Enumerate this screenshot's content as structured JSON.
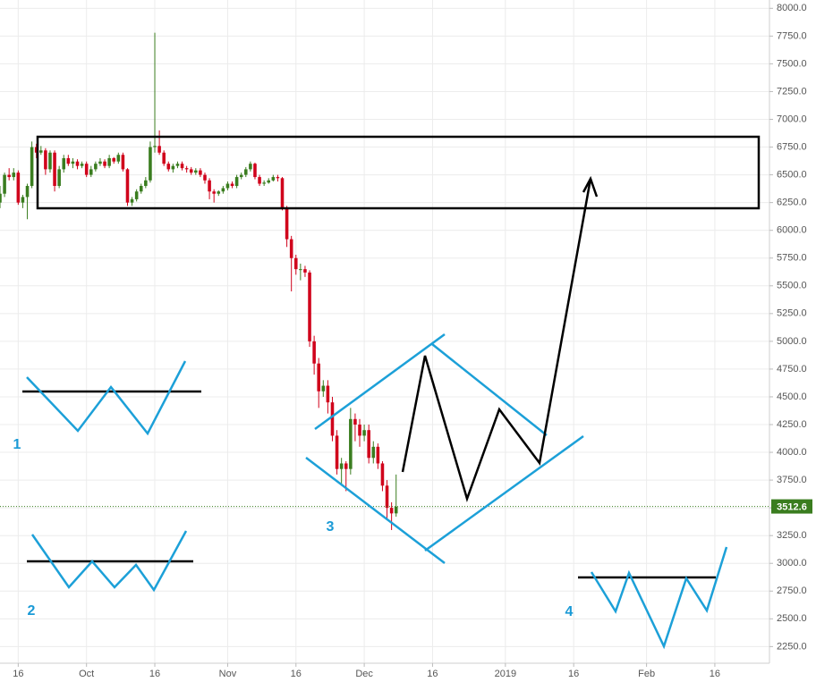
{
  "chart_data": {
    "type": "candlestick",
    "x": [
      0,
      1,
      2,
      3,
      4,
      5,
      6,
      7,
      8,
      9,
      10,
      11,
      12,
      13,
      14,
      15,
      16,
      17,
      18,
      19,
      20,
      21,
      22,
      23,
      24,
      25,
      26,
      27,
      28,
      29,
      30,
      31,
      32,
      33,
      34,
      35,
      36,
      37,
      38,
      39,
      40,
      41,
      42,
      43,
      44,
      45,
      46,
      47,
      48,
      49,
      50,
      51,
      52,
      53,
      54,
      55,
      56,
      57,
      58,
      59,
      60,
      61,
      62,
      63,
      64,
      65,
      66,
      67,
      68,
      69,
      70,
      71,
      72,
      73,
      74,
      75,
      76,
      77,
      78,
      79,
      80,
      81,
      82,
      83,
      84,
      85,
      86,
      87
    ],
    "open": [
      6250,
      6330,
      6500,
      6480,
      6520,
      6250,
      6300,
      6400,
      6750,
      6700,
      6720,
      6550,
      6700,
      6400,
      6550,
      6650,
      6600,
      6620,
      6580,
      6600,
      6500,
      6550,
      6600,
      6620,
      6580,
      6650,
      6620,
      6680,
      6550,
      6250,
      6280,
      6350,
      6400,
      6450,
      6750,
      6760,
      6700,
      6600,
      6550,
      6580,
      6600,
      6560,
      6550,
      6520,
      6540,
      6500,
      6450,
      6350,
      6330,
      6350,
      6380,
      6420,
      6400,
      6480,
      6500,
      6550,
      6600,
      6480,
      6420,
      6430,
      6450,
      6480,
      6470,
      6200,
      5920,
      5750,
      5650,
      5650,
      5620,
      5000,
      4800,
      4550,
      4600,
      4450,
      4150,
      3850,
      3900,
      3850,
      4300,
      4250,
      4150,
      4200,
      3950,
      4050,
      3900,
      3700,
      3500,
      3450
    ],
    "high": [
      6400,
      6520,
      6560,
      6560,
      6540,
      6320,
      6420,
      6800,
      6780,
      6760,
      6740,
      6720,
      6720,
      6580,
      6680,
      6680,
      6650,
      6640,
      6620,
      6620,
      6580,
      6620,
      6650,
      6640,
      6680,
      6660,
      6700,
      6700,
      6560,
      6300,
      6370,
      6420,
      6480,
      6800,
      7780,
      6900,
      6720,
      6620,
      6600,
      6620,
      6620,
      6580,
      6570,
      6560,
      6560,
      6520,
      6470,
      6370,
      6360,
      6400,
      6440,
      6440,
      6500,
      6520,
      6570,
      6620,
      6610,
      6500,
      6450,
      6470,
      6500,
      6500,
      6480,
      6220,
      5950,
      5780,
      5700,
      5680,
      5640,
      5050,
      4850,
      4650,
      4650,
      4500,
      4200,
      3950,
      3920,
      4400,
      4350,
      4300,
      4250,
      4250,
      4100,
      4080,
      3920,
      3750,
      3550,
      3800
    ],
    "low": [
      6200,
      6300,
      6450,
      6450,
      6230,
      6200,
      6100,
      6380,
      6650,
      6680,
      6500,
      6520,
      6350,
      6380,
      6520,
      6580,
      6560,
      6550,
      6560,
      6480,
      6480,
      6530,
      6580,
      6560,
      6560,
      6600,
      6600,
      6530,
      6220,
      6220,
      6260,
      6330,
      6380,
      6430,
      6700,
      6680,
      6580,
      6530,
      6520,
      6560,
      6540,
      6520,
      6500,
      6500,
      6480,
      6420,
      6280,
      6250,
      6310,
      6330,
      6360,
      6380,
      6380,
      6460,
      6480,
      6530,
      6460,
      6400,
      6400,
      6420,
      6440,
      6440,
      6180,
      5850,
      5450,
      5600,
      5550,
      5580,
      4950,
      4700,
      4400,
      4500,
      4350,
      4100,
      3800,
      3700,
      3650,
      3800,
      4100,
      4050,
      4100,
      3900,
      3900,
      3850,
      3650,
      3400,
      3300,
      3420
    ],
    "close": [
      6330,
      6500,
      6480,
      6520,
      6250,
      6300,
      6400,
      6750,
      6700,
      6720,
      6550,
      6700,
      6400,
      6550,
      6650,
      6600,
      6620,
      6580,
      6600,
      6500,
      6550,
      6600,
      6620,
      6580,
      6650,
      6620,
      6680,
      6550,
      6250,
      6280,
      6350,
      6400,
      6450,
      6750,
      6760,
      6700,
      6600,
      6550,
      6580,
      6600,
      6560,
      6550,
      6520,
      6540,
      6500,
      6450,
      6350,
      6330,
      6350,
      6380,
      6420,
      6400,
      6480,
      6500,
      6550,
      6600,
      6480,
      6420,
      6430,
      6450,
      6480,
      6470,
      6200,
      5920,
      5750,
      5650,
      5650,
      5620,
      5000,
      4800,
      4550,
      4600,
      4450,
      4150,
      3850,
      3900,
      3850,
      4300,
      4250,
      4150,
      4200,
      3950,
      4050,
      3900,
      3700,
      3500,
      3450,
      3510
    ],
    "up_color": "#3a7d1f",
    "down_color": "#d0021b",
    "last_price": 3512.6,
    "xlim": [
      0,
      169
    ],
    "xticks": [
      {
        "value": 4,
        "label": "16"
      },
      {
        "value": 19,
        "label": "Oct"
      },
      {
        "value": 34,
        "label": "16"
      },
      {
        "value": 50,
        "label": "Nov"
      },
      {
        "value": 65,
        "label": "16"
      },
      {
        "value": 80,
        "label": "Dec"
      },
      {
        "value": 95,
        "label": "16"
      },
      {
        "value": 111,
        "label": "2019"
      },
      {
        "value": 126,
        "label": "16"
      },
      {
        "value": 142,
        "label": "Feb"
      },
      {
        "value": 157,
        "label": "16"
      }
    ],
    "ylim": [
      2100,
      8075
    ],
    "yticks": [
      {
        "value": 2250,
        "label": "2250.0"
      },
      {
        "value": 2500,
        "label": "2500.0"
      },
      {
        "value": 2750,
        "label": "2750.0"
      },
      {
        "value": 3000,
        "label": "3000.0"
      },
      {
        "value": 3250,
        "label": "3250.0"
      },
      {
        "value": 3500,
        "label": "3500.0"
      },
      {
        "value": 3750,
        "label": "3750.0"
      },
      {
        "value": 4000,
        "label": "4000.0"
      },
      {
        "value": 4250,
        "label": "4250.0"
      },
      {
        "value": 4500,
        "label": "4500.0"
      },
      {
        "value": 4750,
        "label": "4750.0"
      },
      {
        "value": 5000,
        "label": "5000.0"
      },
      {
        "value": 5250,
        "label": "5250.0"
      },
      {
        "value": 5500,
        "label": "5500.0"
      },
      {
        "value": 5750,
        "label": "5750.0"
      },
      {
        "value": 6000,
        "label": "6000.0"
      },
      {
        "value": 6250,
        "label": "6250.0"
      },
      {
        "value": 6500,
        "label": "6500.0"
      },
      {
        "value": 6750,
        "label": "6750.0"
      },
      {
        "value": 7000,
        "label": "7000.0"
      },
      {
        "value": 7250,
        "label": "7250.0"
      },
      {
        "value": 7500,
        "label": "7500.0"
      },
      {
        "value": 7750,
        "label": "7750.0"
      },
      {
        "value": 8000,
        "label": "8000.0"
      }
    ],
    "grid": true,
    "annotations": [
      "1",
      "2",
      "3",
      "4"
    ]
  }
}
